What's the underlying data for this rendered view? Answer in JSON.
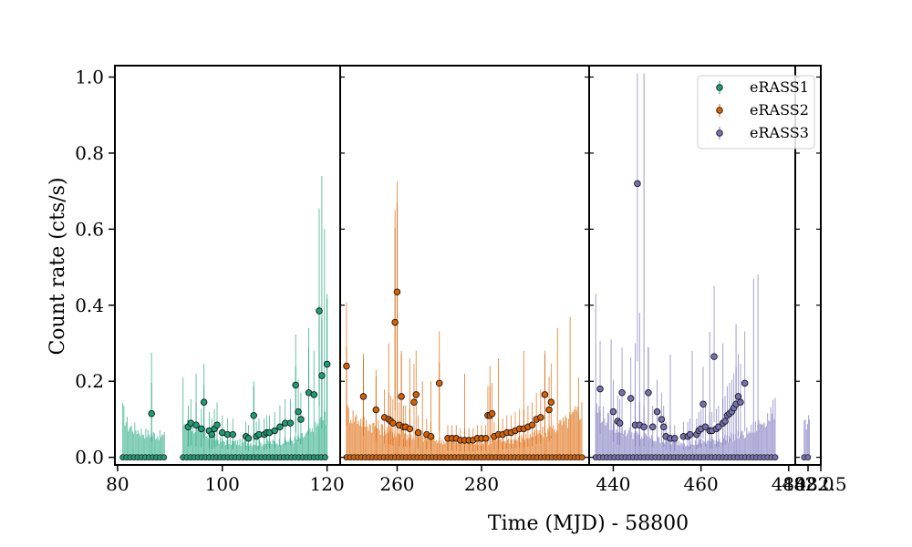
{
  "chart_data": {
    "type": "scatter",
    "title": "",
    "xlabel": "Time (MJD) - 58800",
    "ylabel": "Count rate (cts/s)",
    "ylim": [
      -0.02,
      1.03
    ],
    "yticks": [
      0.0,
      0.2,
      0.4,
      0.6,
      0.8,
      1.0
    ],
    "ytick_labels": [
      "0.0",
      "0.2",
      "0.4",
      "0.6",
      "0.8",
      "1.0"
    ],
    "legend_position": "top-right",
    "broken_axis": true,
    "panels": [
      {
        "series": "eRASS1",
        "xlim": [
          79.5,
          122.5
        ],
        "xticks": [
          80,
          100,
          120
        ],
        "xtick_labels": [
          "80",
          "100",
          "120"
        ],
        "zero_ranges": [
          [
            81,
            89
          ],
          [
            92.5,
            120
          ]
        ],
        "envelope": {
          "x": [
            81,
            82,
            85,
            89,
            92.5,
            100,
            108,
            114,
            117,
            120
          ],
          "y": [
            0.13,
            0.09,
            0.07,
            0.06,
            0.1,
            0.045,
            0.04,
            0.05,
            0.07,
            0.125
          ]
        },
        "bars_high": [
          [
            86.5,
            0.275
          ],
          [
            92.5,
            0.21
          ],
          [
            95,
            0.22
          ],
          [
            96.5,
            0.19
          ],
          [
            106,
            0.2
          ],
          [
            114,
            0.24
          ],
          [
            116.5,
            0.34
          ],
          [
            118.5,
            0.4
          ],
          [
            119,
            0.74
          ],
          [
            119.5,
            0.6
          ],
          [
            120,
            0.43
          ]
        ],
        "points": [
          [
            86.5,
            0.115
          ],
          [
            93.5,
            0.08
          ],
          [
            94,
            0.09
          ],
          [
            95,
            0.085
          ],
          [
            96,
            0.075
          ],
          [
            96.5,
            0.145
          ],
          [
            97.5,
            0.07
          ],
          [
            98,
            0.06
          ],
          [
            98.5,
            0.075
          ],
          [
            99,
            0.085
          ],
          [
            100,
            0.065
          ],
          [
            101,
            0.06
          ],
          [
            102,
            0.06
          ],
          [
            104.5,
            0.055
          ],
          [
            105,
            0.05
          ],
          [
            106,
            0.11
          ],
          [
            106.5,
            0.055
          ],
          [
            107,
            0.06
          ],
          [
            108,
            0.06
          ],
          [
            108.5,
            0.065
          ],
          [
            109,
            0.065
          ],
          [
            110,
            0.07
          ],
          [
            111,
            0.08
          ],
          [
            112,
            0.09
          ],
          [
            113,
            0.09
          ],
          [
            114,
            0.19
          ],
          [
            114.5,
            0.12
          ],
          [
            115,
            0.1
          ],
          [
            116.5,
            0.17
          ],
          [
            117.5,
            0.165
          ],
          [
            118.5,
            0.385
          ],
          [
            119,
            0.215
          ],
          [
            120,
            0.245
          ]
        ]
      },
      {
        "series": "eRASS2",
        "xlim": [
          246.5,
          305.5
        ],
        "xticks": [
          260,
          280
        ],
        "xtick_labels": [
          "260",
          "280"
        ],
        "zero_ranges": [
          [
            248,
            304
          ]
        ],
        "envelope": {
          "x": [
            248,
            252,
            258,
            266,
            272,
            280,
            288,
            296,
            300,
            304
          ],
          "y": [
            0.13,
            0.1,
            0.075,
            0.055,
            0.045,
            0.045,
            0.05,
            0.075,
            0.1,
            0.14
          ]
        },
        "bars_high": [
          [
            248,
            0.29
          ],
          [
            252,
            0.26
          ],
          [
            255,
            0.23
          ],
          [
            258,
            0.3
          ],
          [
            259.5,
            0.65
          ],
          [
            260,
            0.67
          ],
          [
            261,
            0.28
          ],
          [
            263,
            0.26
          ],
          [
            266,
            0.2
          ],
          [
            268,
            0.2
          ],
          [
            270,
            0.25
          ],
          [
            276,
            0.22
          ],
          [
            282,
            0.24
          ],
          [
            284,
            0.26
          ],
          [
            290,
            0.28
          ],
          [
            295,
            0.27
          ],
          [
            298,
            0.34
          ],
          [
            301,
            0.37
          ],
          [
            303,
            0.21
          ]
        ],
        "points": [
          [
            248,
            0.24
          ],
          [
            252,
            0.16
          ],
          [
            255,
            0.125
          ],
          [
            257,
            0.105
          ],
          [
            258,
            0.1
          ],
          [
            258.5,
            0.095
          ],
          [
            259,
            0.09
          ],
          [
            259.5,
            0.355
          ],
          [
            260,
            0.435
          ],
          [
            260.5,
            0.085
          ],
          [
            261,
            0.16
          ],
          [
            261.5,
            0.08
          ],
          [
            262,
            0.08
          ],
          [
            263,
            0.075
          ],
          [
            264,
            0.145
          ],
          [
            264.5,
            0.165
          ],
          [
            265,
            0.065
          ],
          [
            267,
            0.06
          ],
          [
            268,
            0.055
          ],
          [
            270,
            0.195
          ],
          [
            272,
            0.05
          ],
          [
            273,
            0.05
          ],
          [
            274,
            0.05
          ],
          [
            275,
            0.045
          ],
          [
            276,
            0.045
          ],
          [
            277,
            0.045
          ],
          [
            278,
            0.045
          ],
          [
            279,
            0.05
          ],
          [
            280,
            0.05
          ],
          [
            281,
            0.05
          ],
          [
            281.5,
            0.11
          ],
          [
            282,
            0.11
          ],
          [
            282.5,
            0.115
          ],
          [
            283,
            0.055
          ],
          [
            284,
            0.06
          ],
          [
            285,
            0.06
          ],
          [
            286,
            0.065
          ],
          [
            287,
            0.065
          ],
          [
            288,
            0.07
          ],
          [
            289,
            0.075
          ],
          [
            290,
            0.075
          ],
          [
            291,
            0.08
          ],
          [
            292,
            0.085
          ],
          [
            293,
            0.1
          ],
          [
            294,
            0.105
          ],
          [
            295,
            0.165
          ],
          [
            296,
            0.125
          ],
          [
            296.5,
            0.145
          ]
        ]
      },
      {
        "series": "eRASS3",
        "xlim": [
          434.5,
          481.5
        ],
        "xticks": [
          440,
          460,
          480
        ],
        "xtick_labels": [
          "440",
          "460",
          "480"
        ],
        "zero_ranges": [
          [
            436,
            477
          ]
        ],
        "envelope": {
          "x": [
            436,
            440,
            446,
            452,
            458,
            464,
            470,
            474,
            477
          ],
          "y": [
            0.14,
            0.09,
            0.06,
            0.045,
            0.04,
            0.05,
            0.065,
            0.1,
            0.14
          ]
        },
        "bars_high": [
          [
            436,
            0.43
          ],
          [
            439.5,
            0.31
          ],
          [
            445,
            0.3
          ],
          [
            446,
            0.38
          ],
          [
            447,
            1.01
          ],
          [
            448,
            0.29
          ],
          [
            453,
            0.27
          ],
          [
            458,
            0.28
          ],
          [
            462,
            0.33
          ],
          [
            465,
            0.3
          ],
          [
            468,
            0.35
          ],
          [
            472,
            0.47
          ],
          [
            473,
            0.48
          ]
        ],
        "points": [
          [
            437,
            0.18
          ],
          [
            440,
            0.12
          ],
          [
            441,
            0.095
          ],
          [
            441.5,
            0.09
          ],
          [
            442,
            0.17
          ],
          [
            444,
            0.155
          ],
          [
            445,
            0.085
          ],
          [
            445.5,
            0.72
          ],
          [
            446,
            0.085
          ],
          [
            447,
            0.08
          ],
          [
            448,
            0.17
          ],
          [
            449,
            0.08
          ],
          [
            450,
            0.12
          ],
          [
            451,
            0.1
          ],
          [
            451.5,
            0.08
          ],
          [
            452,
            0.055
          ],
          [
            453,
            0.05
          ],
          [
            454,
            0.05
          ],
          [
            456,
            0.055
          ],
          [
            457,
            0.055
          ],
          [
            457.5,
            0.06
          ],
          [
            459,
            0.06
          ],
          [
            459.5,
            0.07
          ],
          [
            460,
            0.075
          ],
          [
            460.5,
            0.14
          ],
          [
            461,
            0.08
          ],
          [
            462,
            0.07
          ],
          [
            462.5,
            0.07
          ],
          [
            463,
            0.265
          ],
          [
            463.5,
            0.075
          ],
          [
            464,
            0.08
          ],
          [
            465,
            0.09
          ],
          [
            465.5,
            0.095
          ],
          [
            466,
            0.11
          ],
          [
            466.5,
            0.115
          ],
          [
            467,
            0.12
          ],
          [
            467.5,
            0.13
          ],
          [
            468,
            0.14
          ],
          [
            468.5,
            0.16
          ],
          [
            469,
            0.145
          ],
          [
            470,
            0.195
          ]
        ]
      },
      {
        "series": "eRASS3",
        "xlim": [
          481.5,
          482.5
        ],
        "xticks": [
          482.0,
          482.5
        ],
        "xtick_labels": [
          "482.0",
          "482.5"
        ],
        "zero_ranges": [
          [
            481.85,
            482.05
          ]
        ],
        "envelope": {
          "x": [
            481.85,
            482.05
          ],
          "y": [
            0.1,
            0.1
          ]
        },
        "bars_high": [
          [
            482.05,
            0.1
          ]
        ],
        "points": []
      }
    ],
    "series": [
      {
        "name": "eRASS1",
        "color": "#1b9e77",
        "band_color": "#66c2a5"
      },
      {
        "name": "eRASS2",
        "color": "#d95f02",
        "band_color": "#e8944f"
      },
      {
        "name": "eRASS3",
        "color": "#7570b3",
        "band_color": "#a29ed0"
      }
    ],
    "zero_marker_color": "#333333"
  }
}
